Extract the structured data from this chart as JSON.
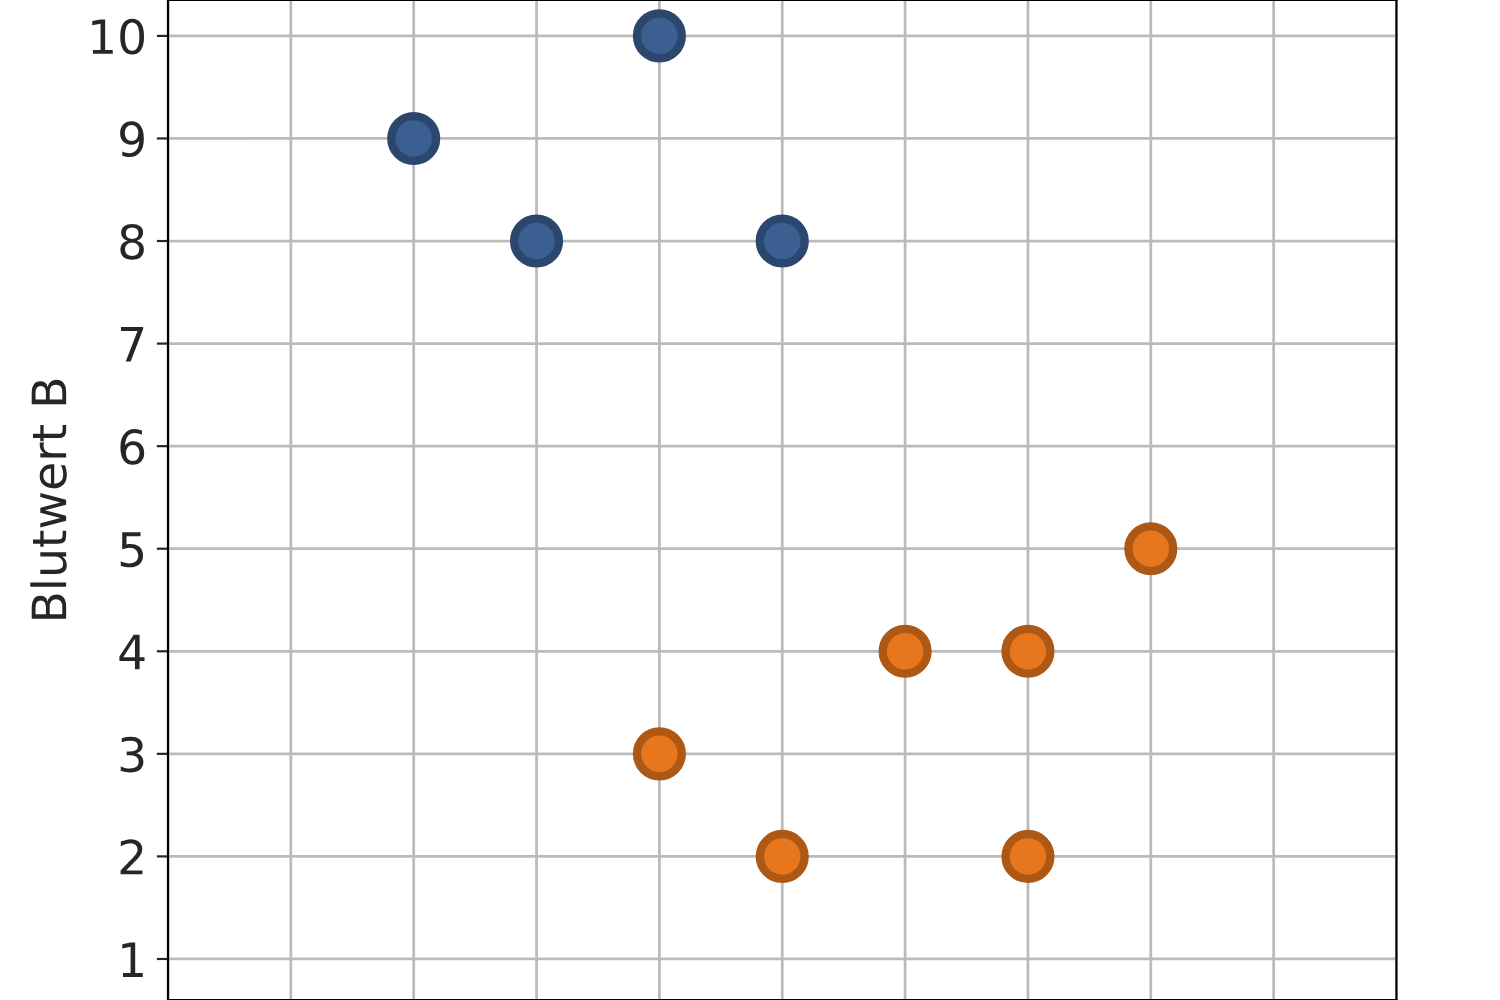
{
  "chart_data": {
    "type": "scatter",
    "ylabel": "Blutwert B",
    "categories": [
      null,
      null,
      null,
      null,
      null,
      null,
      null,
      null,
      null,
      null,
      null
    ],
    "series": [
      {
        "color": "#3b5f91",
        "values": [
          null,
          null,
          9,
          8,
          10,
          8,
          null,
          null,
          null,
          null,
          null
        ]
      },
      {
        "color": "#e8761c",
        "values": [
          null,
          null,
          null,
          null,
          3,
          2,
          4,
          4,
          5,
          null,
          null
        ]
      },
      {
        "color": "#e8761c",
        "values": [
          null,
          null,
          null,
          null,
          null,
          null,
          null,
          2,
          null,
          null,
          null
        ]
      }
    ],
    "ylim": [
      0.6,
      10.35
    ],
    "yticks": [
      1,
      2,
      3,
      4,
      5,
      6,
      7,
      8,
      9,
      10
    ],
    "grid": true,
    "marker": "circle",
    "tick_labels": "y"
  }
}
